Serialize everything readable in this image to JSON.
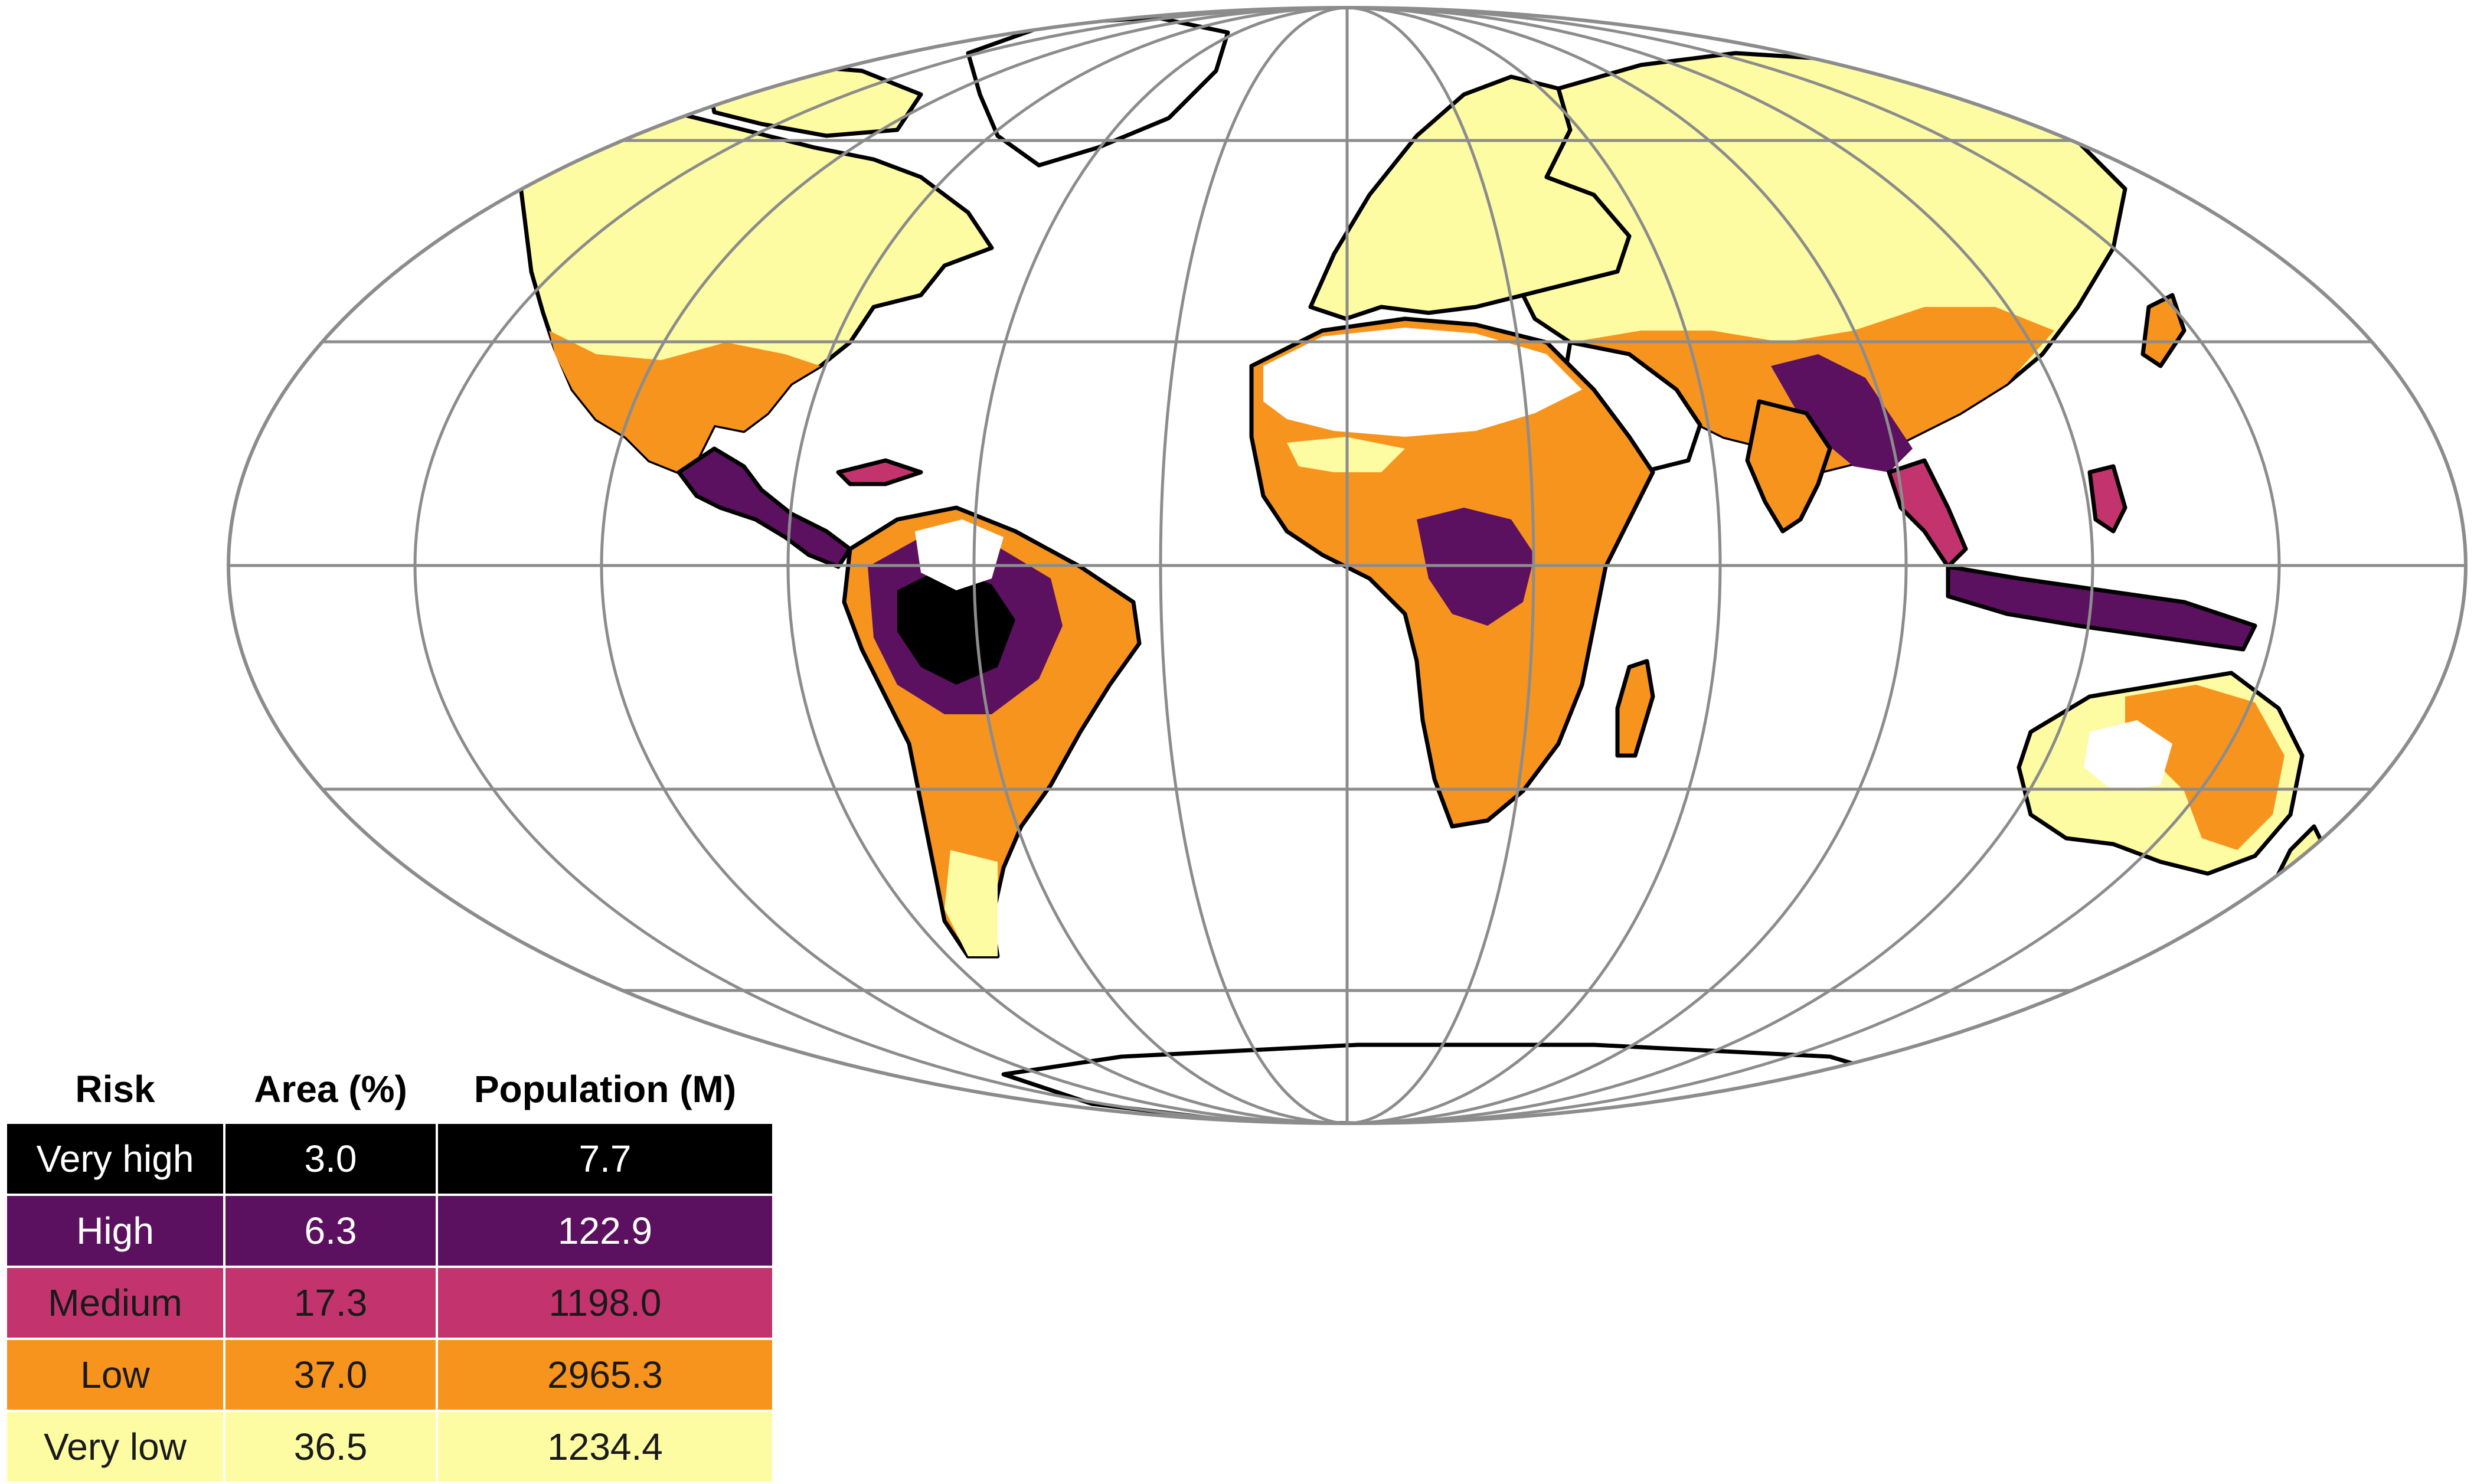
{
  "map": {
    "projection": "Mollweide",
    "graticule": true,
    "colors": {
      "very_high": "#000000",
      "high": "#5c1060",
      "medium": "#c3346f",
      "low": "#f7941e",
      "very_low": "#fefca3",
      "no_data": "#ffffff",
      "coastline": "#000000",
      "graticule": "#8c8c8c"
    }
  },
  "legend_table": {
    "headers": [
      "Risk",
      "Area (%)",
      "Population (M)"
    ],
    "rows": [
      {
        "risk": "Very high",
        "area": "3.0",
        "population": "7.7",
        "bg": "#000000",
        "fg": "#ffffff"
      },
      {
        "risk": "High",
        "area": "6.3",
        "population": "122.9",
        "bg": "#5c1060",
        "fg": "#ffffff"
      },
      {
        "risk": "Medium",
        "area": "17.3",
        "population": "1198.0",
        "bg": "#c3346f",
        "fg": "#1a1a1a"
      },
      {
        "risk": "Low",
        "area": "37.0",
        "population": "2965.3",
        "bg": "#f7941e",
        "fg": "#1a1a1a"
      },
      {
        "risk": "Very low",
        "area": "36.5",
        "population": "1234.4",
        "bg": "#fefca3",
        "fg": "#1a1a1a"
      }
    ]
  }
}
